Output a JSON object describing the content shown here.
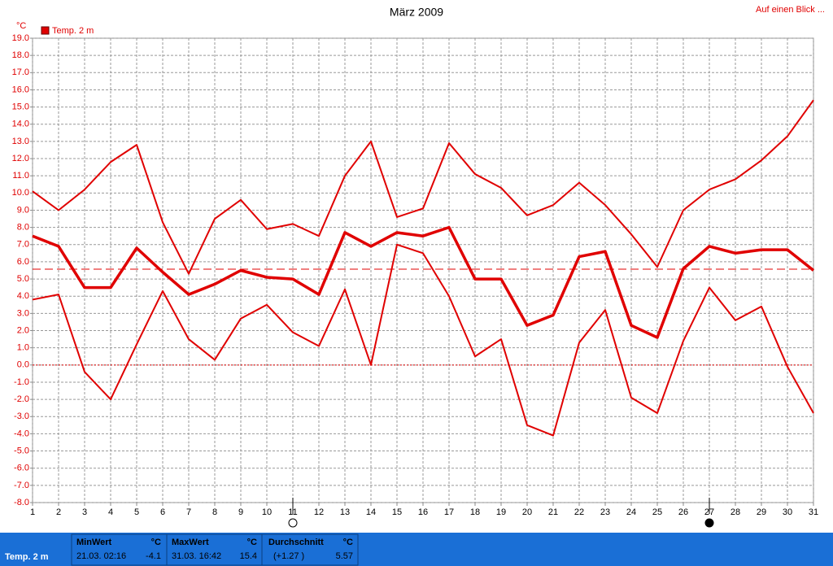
{
  "chart_data": {
    "type": "line",
    "title": "März 2009",
    "link": "Auf einen Blick ...",
    "y_unit": "°C",
    "x": [
      1,
      2,
      3,
      4,
      5,
      6,
      7,
      8,
      9,
      10,
      11,
      12,
      13,
      14,
      15,
      16,
      17,
      18,
      19,
      20,
      21,
      22,
      23,
      24,
      25,
      26,
      27,
      28,
      29,
      30,
      31
    ],
    "xlim": [
      1,
      31
    ],
    "series": [
      {
        "name": "Temp. 2 m",
        "color": "#e00000",
        "max": [
          10.1,
          9.0,
          10.2,
          11.8,
          12.8,
          8.3,
          5.3,
          8.5,
          9.6,
          7.9,
          8.2,
          7.5,
          11.0,
          13.0,
          8.6,
          9.1,
          12.9,
          11.1,
          10.3,
          8.7,
          9.3,
          10.6,
          9.3,
          7.6,
          5.7,
          9.0,
          10.2,
          10.8,
          11.9,
          13.3,
          15.4
        ],
        "mean": [
          7.5,
          6.9,
          4.5,
          4.5,
          6.8,
          5.4,
          4.1,
          4.7,
          5.5,
          5.1,
          5.0,
          4.1,
          7.7,
          6.9,
          7.7,
          7.5,
          8.0,
          5.0,
          5.0,
          2.3,
          2.9,
          6.3,
          6.6,
          2.3,
          1.6,
          5.6,
          6.9,
          6.5,
          6.7,
          6.7,
          5.5
        ],
        "min": [
          3.8,
          4.1,
          -0.4,
          -2.0,
          1.2,
          4.3,
          1.5,
          0.3,
          2.7,
          3.5,
          1.9,
          1.1,
          4.4,
          0.0,
          7.0,
          6.5,
          4.0,
          0.5,
          1.5,
          -3.5,
          -4.1,
          1.3,
          3.2,
          -1.9,
          -2.8,
          1.4,
          4.5,
          2.6,
          3.4,
          -0.1,
          -2.8
        ]
      }
    ],
    "ylim": [
      -8,
      19
    ],
    "yticks": [
      {
        "value": -8,
        "label": "-8.0"
      },
      {
        "value": -7,
        "label": "-7.0"
      },
      {
        "value": -6,
        "label": "-6.0"
      },
      {
        "value": -5,
        "label": "-5.0"
      },
      {
        "value": -4,
        "label": "-4.0"
      },
      {
        "value": -3,
        "label": "-3.0"
      },
      {
        "value": -2,
        "label": "-2.0"
      },
      {
        "value": -1,
        "label": "-1.0"
      },
      {
        "value": 0,
        "label": "0.0"
      },
      {
        "value": 1,
        "label": "1.0"
      },
      {
        "value": 2,
        "label": "2.0"
      },
      {
        "value": 3,
        "label": "3.0"
      },
      {
        "value": 4,
        "label": "4.0"
      },
      {
        "value": 5,
        "label": "5.0"
      },
      {
        "value": 6,
        "label": "6.0"
      },
      {
        "value": 7,
        "label": "7.0"
      },
      {
        "value": 8,
        "label": "8.0"
      },
      {
        "value": 9,
        "label": "9.0"
      },
      {
        "value": 10,
        "label": "10.0"
      },
      {
        "value": 11,
        "label": "11.0"
      },
      {
        "value": 12,
        "label": "12.0"
      },
      {
        "value": 13,
        "label": "13.0"
      },
      {
        "value": 14,
        "label": "14.0"
      },
      {
        "value": 15,
        "label": "15.0"
      },
      {
        "value": 16,
        "label": "16.0"
      },
      {
        "value": 17,
        "label": "17.0"
      },
      {
        "value": 18,
        "label": "18.0"
      },
      {
        "value": 19,
        "label": "19.0"
      }
    ],
    "grid": true,
    "moon_phases": [
      {
        "day": 11,
        "phase": "full"
      },
      {
        "day": 27,
        "phase": "new"
      }
    ],
    "stats": {
      "name": "Temp. 2 m",
      "unit": "°C",
      "min_label": "MinWert",
      "min_time": "21.03. 02:16",
      "min": -4.1,
      "max_label": "MaxWert",
      "max_time": "31.03. 16:42",
      "max": 15.4,
      "avg_label": "Durchschnitt",
      "avg_diff": "(+1.27 )",
      "average": 5.57
    }
  }
}
